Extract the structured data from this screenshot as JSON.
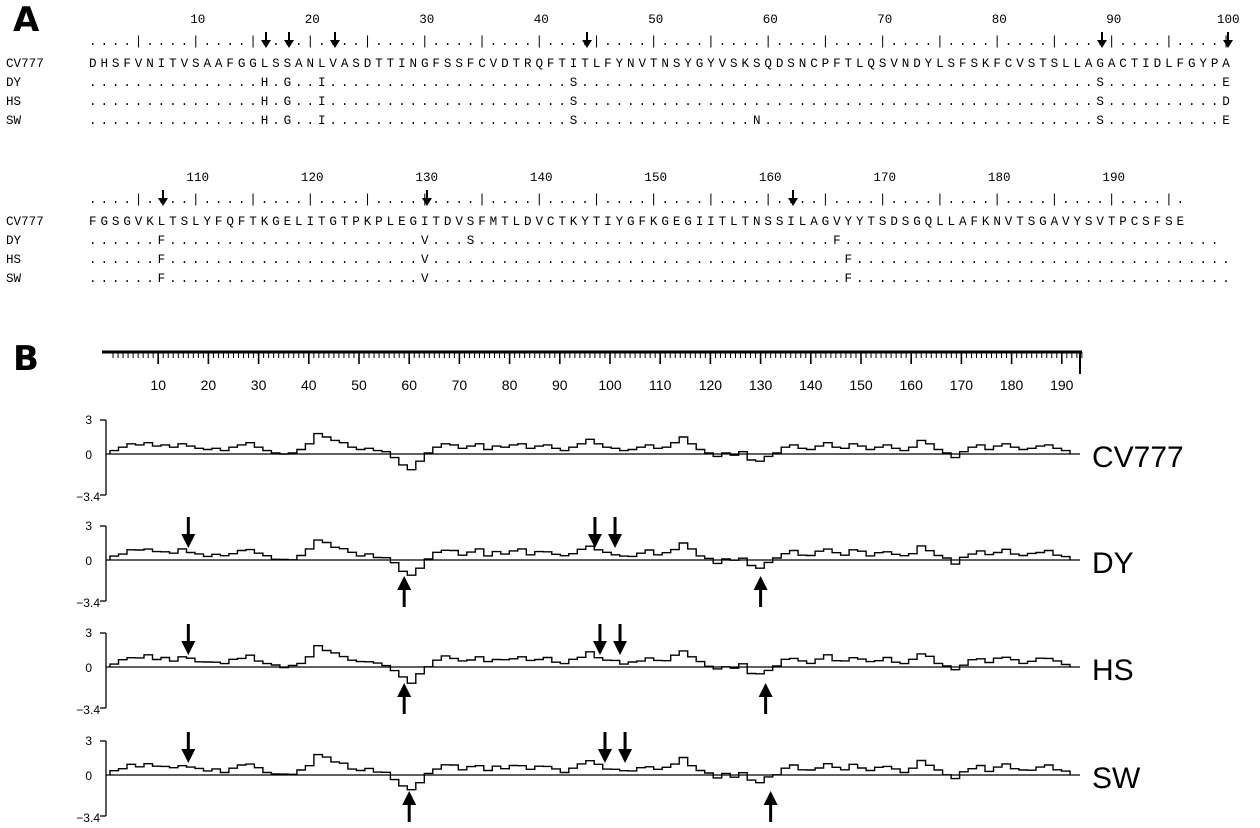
{
  "panel_a": {
    "letter": "A",
    "blocks": [
      {
        "ruler_numbers": [
          "10",
          "20",
          "30",
          "40",
          "50",
          "60",
          "70",
          "80",
          "90",
          "100"
        ],
        "ruler_line": "....|....|....|....|....|....|....|....|....|....|....|....|....|....|....|....|....|....|....|....|",
        "arrow_positions": [
          16,
          18,
          22,
          44,
          89,
          100
        ],
        "rows": [
          {
            "name": "CV777",
            "seq": "DHSFVNITVSAAFGGLSSANLVASDTTINGFSSFCVDTRQFTITLFYNVTNSYGYVSKSQDSNCPFTLQSVNDYLSFSKFCVSTSLLAGACTIDLFGYPA"
          },
          {
            "name": "DY",
            "seq": "...............H.G..I.....................S.............................................S..........E"
          },
          {
            "name": "HS",
            "seq": "...............H.G..I.....................S.............................................S..........D"
          },
          {
            "name": "SW",
            "seq": "...............H.G..I.....................S...............N.............................S..........E"
          }
        ]
      },
      {
        "ruler_numbers": [
          "110",
          "120",
          "130",
          "140",
          "150",
          "160",
          "170",
          "180",
          "190"
        ],
        "ruler_line": "....|....|....|....|....|....|....|....|....|....|....|....|....|....|....|....|....|....|....|.",
        "arrow_positions": [
          107,
          130,
          162
        ],
        "rows": [
          {
            "name": "CV777",
            "seq": "FGSGVKLTSLYFQFTKGELITGTPKPLEGITDVSFMTLDVCTKYTIYGFKGEGIITLTNSSILAGVYYTSDSGQLLAFKNVTSGAVYSVTPCSFSE"
          },
          {
            "name": "DY",
            "seq": "......F......................V...S...............................F................................."
          },
          {
            "name": "HS",
            "seq": "......F......................V....................................F................................."
          },
          {
            "name": "SW",
            "seq": "......F......................V....................................F................................."
          }
        ]
      }
    ]
  },
  "panel_b": {
    "letter": "B",
    "axis_ticks": [
      "10",
      "20",
      "30",
      "40",
      "50",
      "60",
      "70",
      "80",
      "90",
      "100",
      "110",
      "120",
      "130",
      "140",
      "150",
      "160",
      "170",
      "180",
      "190"
    ],
    "y_ticks": {
      "top": "3",
      "mid": "0",
      "bottom": "−3.4"
    },
    "y_range": [
      -3.4,
      3
    ],
    "profile_values": [
      0.3,
      0.6,
      0.9,
      0.8,
      1.0,
      0.7,
      0.8,
      0.6,
      0.9,
      0.7,
      0.5,
      0.4,
      0.5,
      0.3,
      0.6,
      0.8,
      1.0,
      0.6,
      0.3,
      0.1,
      0.0,
      0.1,
      0.4,
      0.9,
      1.8,
      1.5,
      1.2,
      1.0,
      0.6,
      0.4,
      0.5,
      0.3,
      0.2,
      -0.3,
      -0.9,
      -1.3,
      -0.6,
      0.1,
      0.6,
      0.9,
      0.8,
      0.5,
      0.7,
      0.9,
      0.4,
      0.7,
      0.6,
      0.8,
      0.9,
      0.5,
      0.7,
      0.8,
      0.5,
      0.3,
      0.6,
      0.9,
      1.3,
      0.9,
      0.6,
      0.5,
      0.3,
      0.4,
      0.6,
      0.8,
      0.5,
      0.6,
      1.0,
      1.5,
      0.9,
      0.4,
      0.1,
      -0.2,
      0.1,
      -0.1,
      0.2,
      -0.5,
      -0.6,
      -0.2,
      0.1,
      0.6,
      0.8,
      0.5,
      0.4,
      0.7,
      1.0,
      0.6,
      0.5,
      0.9,
      0.7,
      0.4,
      0.6,
      0.8,
      0.5,
      0.3,
      0.6,
      1.2,
      0.9,
      0.4,
      0.1,
      -0.3,
      0.2,
      0.6,
      0.8,
      0.4,
      0.7,
      0.9,
      0.6,
      0.4,
      0.5,
      0.7,
      0.8,
      0.5,
      0.3
    ],
    "tracks": [
      {
        "name": "CV777",
        "down_arrows": [],
        "up_arrows": []
      },
      {
        "name": "DY",
        "down_arrows": [
          16,
          97,
          101
        ],
        "up_arrows": [
          59,
          130
        ]
      },
      {
        "name": "HS",
        "down_arrows": [
          16,
          98,
          102
        ],
        "up_arrows": [
          59,
          131
        ]
      },
      {
        "name": "SW",
        "down_arrows": [
          16,
          99,
          103
        ],
        "up_arrows": [
          60,
          132
        ]
      }
    ]
  }
}
